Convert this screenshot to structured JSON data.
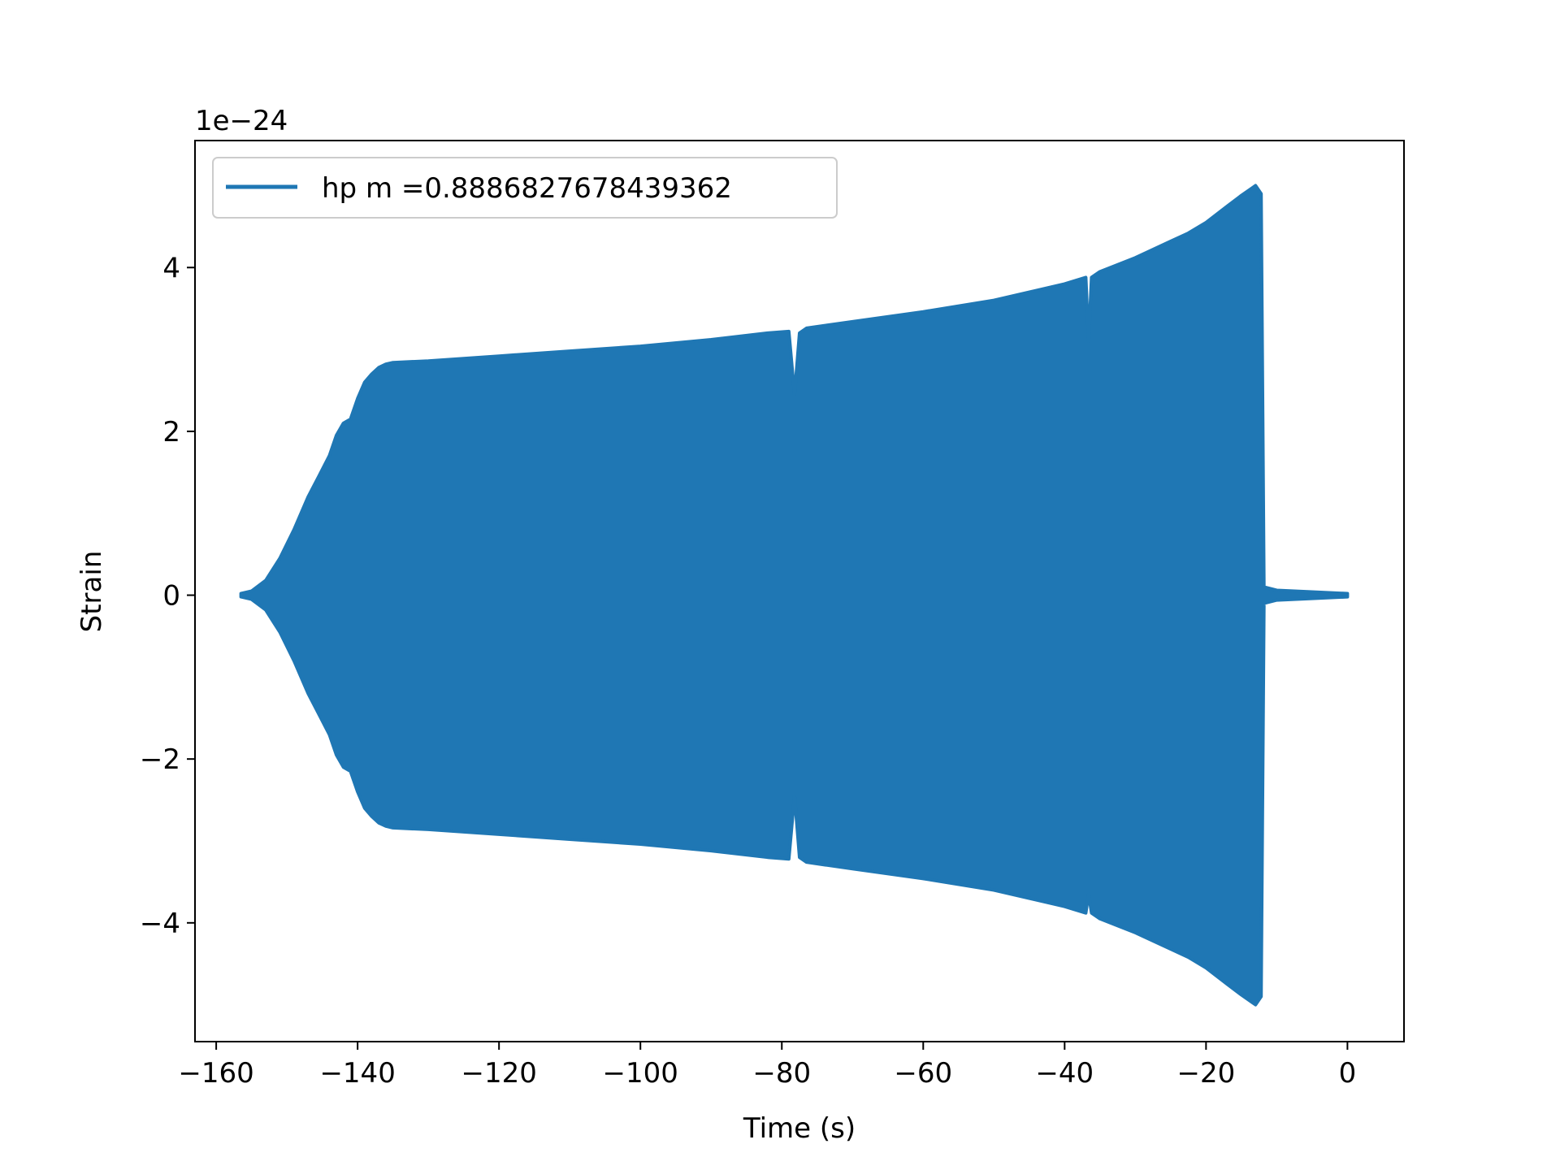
{
  "chart_data": {
    "type": "line",
    "xlabel": "Time (s)",
    "ylabel": "Strain",
    "y_offset_text": "1e−24",
    "xlim": [
      -163,
      8
    ],
    "ylim": [
      -5.45,
      5.55
    ],
    "x_ticks": [
      -160,
      -140,
      -120,
      -100,
      -80,
      -60,
      -40,
      -20,
      0
    ],
    "x_tick_labels": [
      "−160",
      "−140",
      "−120",
      "−100",
      "−80",
      "−60",
      "−40",
      "−20",
      "0"
    ],
    "y_ticks": [
      -4,
      -2,
      0,
      2,
      4
    ],
    "y_tick_labels": [
      "−4",
      "−2",
      "0",
      "2",
      "4"
    ],
    "grid": false,
    "legend_position": "top-left",
    "series": [
      {
        "name": "hp m =0.8886827678439362",
        "color": "#1f77b4",
        "envelope_x": [
          -156.5,
          -155,
          -153,
          -151,
          -149,
          -147,
          -145.5,
          -144,
          -143,
          -142,
          -141,
          -140,
          -139,
          -138,
          -137,
          -136,
          -135,
          -130,
          -120,
          -110,
          -100,
          -90,
          -82,
          -79,
          -78.2,
          -77.5,
          -76.5,
          -70,
          -60,
          -50,
          -40,
          -37,
          -36.6,
          -36.2,
          -35,
          -30,
          -25,
          -22.5,
          -20,
          -17,
          -15,
          -13.5,
          -13,
          -12.2,
          -11.8,
          -10,
          -5,
          0
        ],
        "envelope_upper": [
          0.02,
          0.05,
          0.18,
          0.45,
          0.8,
          1.2,
          1.45,
          1.7,
          1.95,
          2.1,
          2.15,
          2.4,
          2.6,
          2.7,
          2.78,
          2.82,
          2.84,
          2.86,
          2.92,
          2.98,
          3.04,
          3.12,
          3.2,
          3.22,
          2.45,
          3.2,
          3.26,
          3.34,
          3.46,
          3.6,
          3.8,
          3.88,
          3.1,
          3.88,
          3.95,
          4.12,
          4.32,
          4.42,
          4.55,
          4.75,
          4.88,
          4.97,
          5.0,
          4.9,
          0.1,
          0.06,
          0.04,
          0.02
        ],
        "envelope_lower": [
          -0.02,
          -0.05,
          -0.18,
          -0.45,
          -0.8,
          -1.2,
          -1.45,
          -1.7,
          -1.95,
          -2.1,
          -2.15,
          -2.4,
          -2.6,
          -2.7,
          -2.78,
          -2.82,
          -2.84,
          -2.86,
          -2.92,
          -2.98,
          -3.04,
          -3.12,
          -3.2,
          -3.22,
          -2.45,
          -3.2,
          -3.26,
          -3.34,
          -3.46,
          -3.6,
          -3.8,
          -3.88,
          -3.65,
          -3.88,
          -3.95,
          -4.12,
          -4.32,
          -4.42,
          -4.55,
          -4.75,
          -4.88,
          -4.97,
          -5.0,
          -4.9,
          -0.1,
          -0.06,
          -0.04,
          -0.02
        ]
      }
    ]
  }
}
